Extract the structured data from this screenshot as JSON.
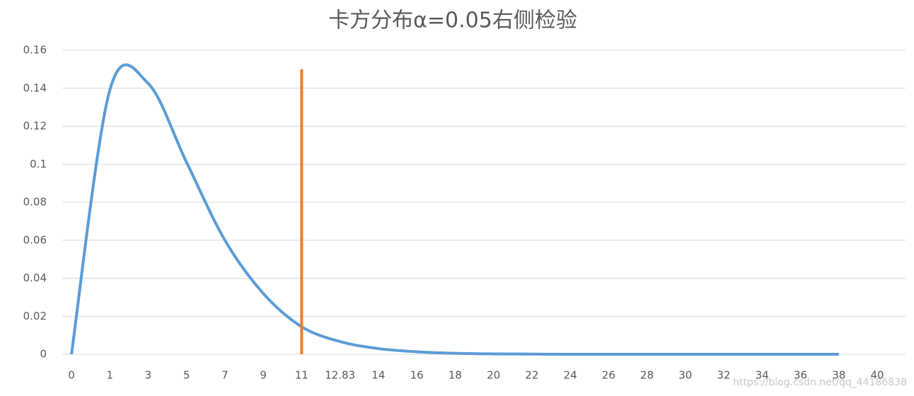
{
  "chart_data": {
    "type": "line",
    "title": "卡方分布α=0.05右侧检验",
    "categories": [
      "0",
      "1",
      "3",
      "5",
      "7",
      "9",
      "11",
      "12.83",
      "14",
      "16",
      "18",
      "20",
      "22",
      "24",
      "26",
      "28",
      "30",
      "32",
      "34",
      "36",
      "38",
      "40"
    ],
    "series": [
      {
        "color": "#5b9bd5",
        "values": [
          0,
          0.139,
          0.1425,
          0.101,
          0.06,
          0.032,
          0.0145,
          0.0067,
          0.003,
          0.0013,
          0.0005,
          0.0002,
          0.0001,
          0,
          0,
          0,
          0,
          0,
          0,
          0,
          0,
          null
        ]
      }
    ],
    "vline": {
      "category": "11",
      "value": 0.15,
      "color": "#ed7d31"
    },
    "ylim": [
      0,
      0.16
    ],
    "yticks": [
      0,
      0.02,
      0.04,
      0.06,
      0.08,
      0.1,
      0.12,
      0.14,
      0.16
    ],
    "grid": true,
    "watermark": "https://blog.csdn.net/qq_44186838"
  }
}
